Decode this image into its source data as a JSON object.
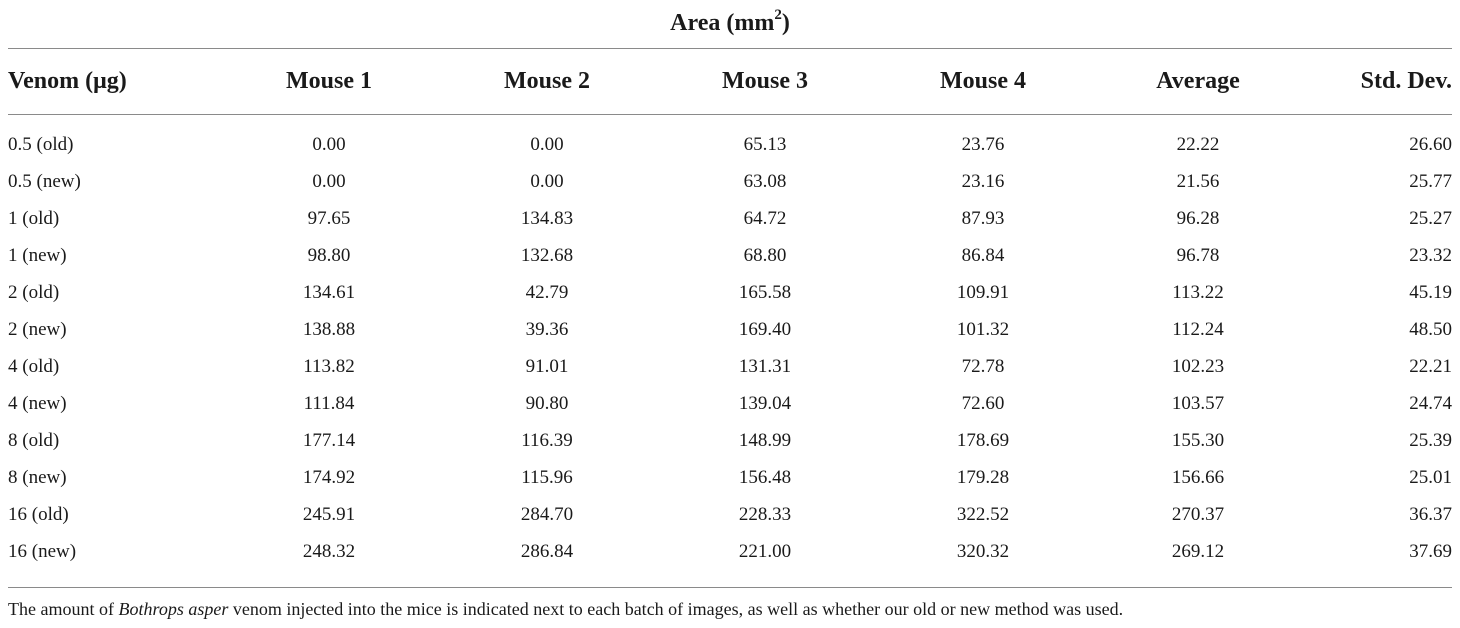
{
  "area_header": {
    "label": "Area (mm",
    "superscript": "2",
    "suffix": ")"
  },
  "columns": [
    "Venom (μg)",
    "Mouse 1",
    "Mouse 2",
    "Mouse 3",
    "Mouse 4",
    "Average",
    "Std. Dev."
  ],
  "rows": [
    [
      "0.5 (old)",
      "0.00",
      "0.00",
      "65.13",
      "23.76",
      "22.22",
      "26.60"
    ],
    [
      "0.5 (new)",
      "0.00",
      "0.00",
      "63.08",
      "23.16",
      "21.56",
      "25.77"
    ],
    [
      "1 (old)",
      "97.65",
      "134.83",
      "64.72",
      "87.93",
      "96.28",
      "25.27"
    ],
    [
      "1 (new)",
      "98.80",
      "132.68",
      "68.80",
      "86.84",
      "96.78",
      "23.32"
    ],
    [
      "2 (old)",
      "134.61",
      "42.79",
      "165.58",
      "109.91",
      "113.22",
      "45.19"
    ],
    [
      "2 (new)",
      "138.88",
      "39.36",
      "169.40",
      "101.32",
      "112.24",
      "48.50"
    ],
    [
      "4 (old)",
      "113.82",
      "91.01",
      "131.31",
      "72.78",
      "102.23",
      "22.21"
    ],
    [
      "4 (new)",
      "111.84",
      "90.80",
      "139.04",
      "72.60",
      "103.57",
      "24.74"
    ],
    [
      "8 (old)",
      "177.14",
      "116.39",
      "148.99",
      "178.69",
      "155.30",
      "25.39"
    ],
    [
      "8 (new)",
      "174.92",
      "115.96",
      "156.48",
      "179.28",
      "156.66",
      "25.01"
    ],
    [
      "16 (old)",
      "245.91",
      "284.70",
      "228.33",
      "322.52",
      "270.37",
      "36.37"
    ],
    [
      "16 (new)",
      "248.32",
      "286.84",
      "221.00",
      "320.32",
      "269.12",
      "37.69"
    ]
  ],
  "footnote": {
    "prefix": "The amount of ",
    "species": "Bothrops asper",
    "suffix": " venom injected into the mice is indicated next to each batch of images, as well as whether our old or new method was used."
  }
}
